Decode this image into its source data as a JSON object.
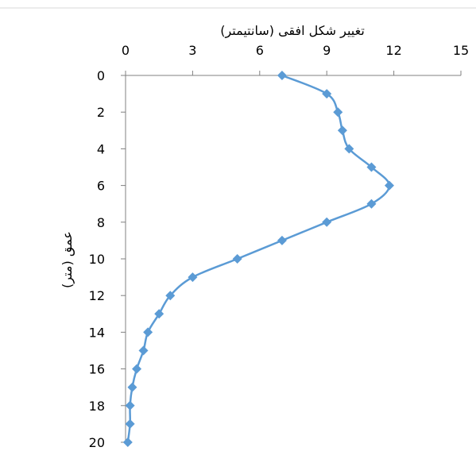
{
  "chart_data": {
    "type": "line",
    "title": "",
    "xlabel": "تغيير شکل افقی (سانتيمتر)",
    "ylabel": "عمق (متر)",
    "xlim": [
      0,
      15
    ],
    "ylim": [
      0,
      20
    ],
    "y_reversed": true,
    "x_axis_position": "top",
    "x_ticks": [
      0,
      3,
      6,
      9,
      12,
      15
    ],
    "y_ticks": [
      0,
      2,
      4,
      6,
      8,
      10,
      12,
      14,
      16,
      18,
      20
    ],
    "grid": false,
    "marker": "diamond",
    "series": [
      {
        "color": "#5b9bd5",
        "points": [
          {
            "x": 7.0,
            "y": 0
          },
          {
            "x": 9.0,
            "y": 1
          },
          {
            "x": 9.5,
            "y": 2
          },
          {
            "x": 9.7,
            "y": 3
          },
          {
            "x": 10.0,
            "y": 4
          },
          {
            "x": 11.0,
            "y": 5
          },
          {
            "x": 11.8,
            "y": 6
          },
          {
            "x": 11.0,
            "y": 7
          },
          {
            "x": 9.0,
            "y": 8
          },
          {
            "x": 7.0,
            "y": 9
          },
          {
            "x": 5.0,
            "y": 10
          },
          {
            "x": 3.0,
            "y": 11
          },
          {
            "x": 2.0,
            "y": 12
          },
          {
            "x": 1.5,
            "y": 13
          },
          {
            "x": 1.0,
            "y": 14
          },
          {
            "x": 0.8,
            "y": 15
          },
          {
            "x": 0.5,
            "y": 16
          },
          {
            "x": 0.3,
            "y": 17
          },
          {
            "x": 0.2,
            "y": 18
          },
          {
            "x": 0.2,
            "y": 19
          },
          {
            "x": 0.1,
            "y": 20
          }
        ]
      }
    ]
  }
}
